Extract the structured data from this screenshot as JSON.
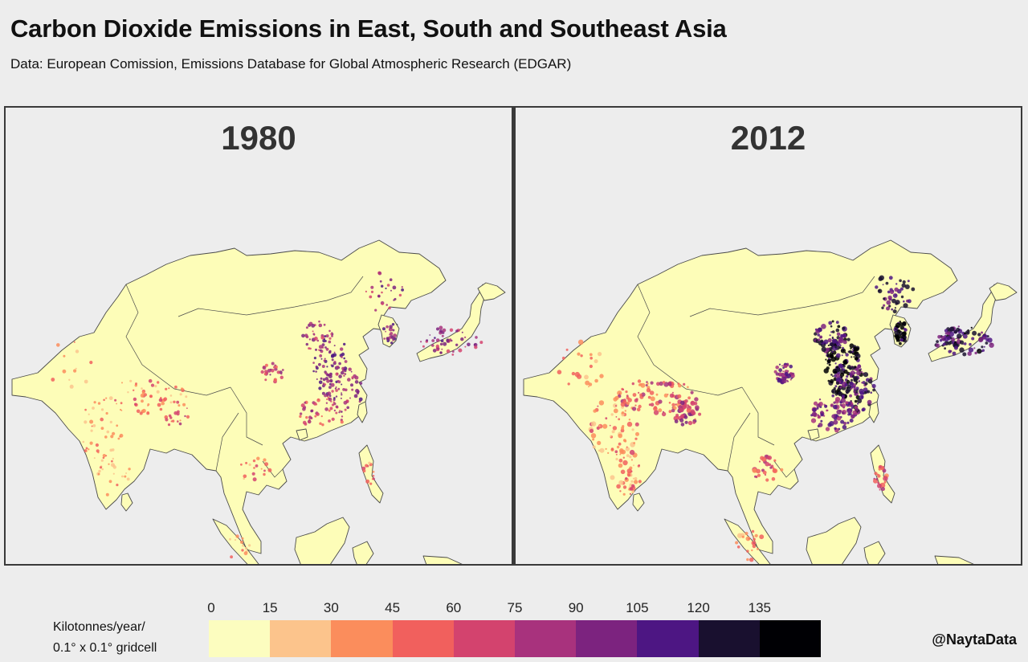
{
  "title": "Carbon Dioxide Emissions in East, South and Southeast Asia",
  "subtitle": "Data: European Comission, Emissions Database for Global Atmospheric Research (EDGAR)",
  "panels": [
    {
      "year": "1980",
      "intensity": 0.35
    },
    {
      "year": "2012",
      "intensity": 1.0
    }
  ],
  "legend": {
    "caption_line1": "Kilotonnes/year/",
    "caption_line2": "0.1° x 0.1° gridcell",
    "ticks": [
      "0",
      "15",
      "30",
      "45",
      "60",
      "75",
      "90",
      "105",
      "120",
      "135"
    ],
    "colors": [
      "#fcfdbf",
      "#fcc48c",
      "#fb8d5c",
      "#f1605d",
      "#d3436e",
      "#a8327d",
      "#7c237f",
      "#4d1683",
      "#19102f",
      "#000004"
    ]
  },
  "colors": {
    "land": "#fdfdb8",
    "border": "#4a4a4a",
    "background": "#ededed"
  },
  "credit": "@NaytaData"
}
